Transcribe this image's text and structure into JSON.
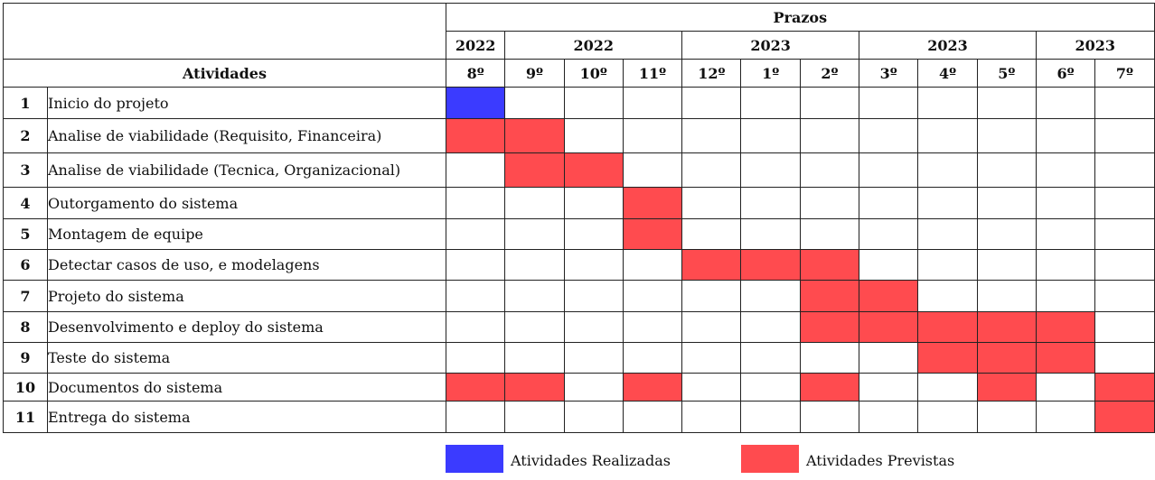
{
  "header": {
    "prazos": "Prazos",
    "atividades": "Atividades",
    "years": [
      {
        "label": "2022",
        "span": 1
      },
      {
        "label": "2022",
        "span": 3
      },
      {
        "label": "2023",
        "span": 3
      },
      {
        "label": "2023",
        "span": 3
      },
      {
        "label": "2023",
        "span": 2
      }
    ],
    "months": [
      "8º",
      "9º",
      "10º",
      "11º",
      "12º",
      "1º",
      "2º",
      "3º",
      "4º",
      "5º",
      "6º",
      "7º"
    ]
  },
  "rows": [
    {
      "num": "1",
      "activity": "Inicio do projeto",
      "cells": [
        "done",
        "",
        "",
        "",
        "",
        "",
        "",
        "",
        "",
        "",
        "",
        ""
      ]
    },
    {
      "num": "2",
      "activity": "Analise de viabilidade (Requisito, Financeira)",
      "cells": [
        "planned",
        "planned",
        "",
        "",
        "",
        "",
        "",
        "",
        "",
        "",
        "",
        ""
      ]
    },
    {
      "num": "3",
      "activity": "Analise de viabilidade (Tecnica, Organizacional)",
      "cells": [
        "",
        "planned",
        "planned",
        "",
        "",
        "",
        "",
        "",
        "",
        "",
        "",
        ""
      ]
    },
    {
      "num": "4",
      "activity": "Outorgamento do sistema",
      "cells": [
        "",
        "",
        "",
        "planned",
        "",
        "",
        "",
        "",
        "",
        "",
        "",
        ""
      ]
    },
    {
      "num": "5",
      "activity": "Montagem de equipe",
      "cells": [
        "",
        "",
        "",
        "planned",
        "",
        "",
        "",
        "",
        "",
        "",
        "",
        ""
      ]
    },
    {
      "num": "6",
      "activity": "Detectar casos de uso, e modelagens",
      "cells": [
        "",
        "",
        "",
        "",
        "planned",
        "planned",
        "planned",
        "",
        "",
        "",
        "",
        ""
      ]
    },
    {
      "num": "7",
      "activity": "Projeto do sistema",
      "cells": [
        "",
        "",
        "",
        "",
        "",
        "",
        "planned",
        "planned",
        "",
        "",
        "",
        ""
      ]
    },
    {
      "num": "8",
      "activity": "Desenvolvimento e deploy do sistema",
      "cells": [
        "",
        "",
        "",
        "",
        "",
        "",
        "planned",
        "planned",
        "planned",
        "planned",
        "planned",
        ""
      ]
    },
    {
      "num": "9",
      "activity": "Teste do sistema",
      "cells": [
        "",
        "",
        "",
        "",
        "",
        "",
        "",
        "",
        "planned",
        "planned",
        "planned",
        ""
      ]
    },
    {
      "num": "10",
      "activity": "Documentos do sistema",
      "cells": [
        "planned",
        "planned",
        "",
        "planned",
        "",
        "",
        "planned",
        "",
        "",
        "planned",
        "",
        "planned"
      ]
    },
    {
      "num": "11",
      "activity": "Entrega do sistema",
      "cells": [
        "",
        "",
        "",
        "",
        "",
        "",
        "",
        "",
        "",
        "",
        "",
        "planned"
      ]
    }
  ],
  "legend": {
    "done_label": "Atividades Realizadas",
    "planned_label": "Atividades Previstas"
  },
  "colors": {
    "done": "#3b3bff",
    "planned": "#ff4b4f"
  }
}
